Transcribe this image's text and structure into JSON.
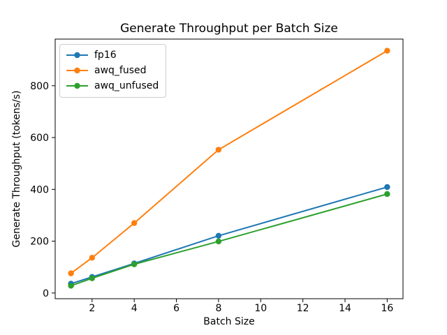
{
  "figure": {
    "background": "#ffffff",
    "axis_color": "#000000",
    "text_color": "#000000"
  },
  "chart_data": {
    "type": "line",
    "title": "Generate Throughput per Batch Size",
    "xlabel": "Batch Size",
    "ylabel": "Generate Throughput (tokens/s)",
    "x": [
      1,
      2,
      4,
      8,
      16
    ],
    "series": [
      {
        "name": "fp16",
        "color": "#1f77b4",
        "values": [
          36,
          62,
          114,
          221,
          409
        ]
      },
      {
        "name": "awq_fused",
        "color": "#ff7f0e",
        "values": [
          76,
          136,
          270,
          553,
          935
        ]
      },
      {
        "name": "awq_unfused",
        "color": "#2ca02c",
        "values": [
          28,
          57,
          111,
          199,
          382
        ]
      }
    ],
    "x_ticks": [
      2,
      4,
      6,
      8,
      10,
      12,
      14,
      16
    ],
    "y_ticks": [
      0,
      200,
      400,
      600,
      800
    ],
    "xlim": [
      0.25,
      16.75
    ],
    "ylim": [
      -22,
      980
    ],
    "grid": false,
    "legend_position": "upper left",
    "marker": "o"
  }
}
